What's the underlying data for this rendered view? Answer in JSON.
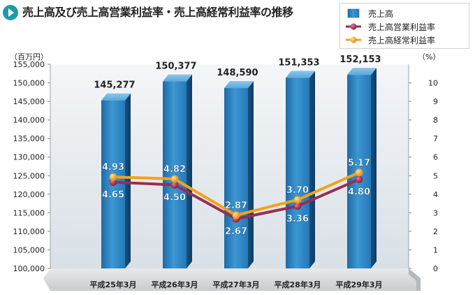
{
  "title": "売上高及び売上高営業利益率・売上高経常利益率の推移",
  "left_unit": "（百万円）",
  "right_unit": "（%）",
  "colors": {
    "bar": "#2f7fb8",
    "operating_line": "#9b2c52",
    "ordinary_line": "#f3a21c"
  },
  "legend": [
    {
      "label": "売上高",
      "icon": "bar-swatch-icon"
    },
    {
      "label": "売上高営業利益率",
      "icon": "maroon-line-marker-icon"
    },
    {
      "label": "売上高経常利益率",
      "icon": "orange-line-marker-icon"
    }
  ],
  "chart_data": {
    "type": "bar",
    "categories": [
      "平成25年3月",
      "平成26年3月",
      "平成27年3月",
      "平成28年3月",
      "平成29年3月"
    ],
    "series": [
      {
        "name": "売上高",
        "type": "bar",
        "axis": "left",
        "values": [
          145277,
          150377,
          148590,
          151353,
          152153
        ],
        "labels": [
          "145,277",
          "150,377",
          "148,590",
          "151,353",
          "152,153"
        ]
      },
      {
        "name": "売上高営業利益率",
        "type": "line",
        "axis": "right",
        "values": [
          4.65,
          4.5,
          2.67,
          3.36,
          4.8
        ],
        "labels": [
          "4.65",
          "4.50",
          "2.67",
          "3.36",
          "4.80"
        ]
      },
      {
        "name": "売上高経常利益率",
        "type": "line",
        "axis": "right",
        "values": [
          4.93,
          4.82,
          2.87,
          3.7,
          5.17
        ],
        "labels": [
          "4.93",
          "4.82",
          "2.87",
          "3.70",
          "5.17"
        ]
      }
    ],
    "left_axis": {
      "ylim": [
        100000,
        155000
      ],
      "ticks": [
        "100,000",
        "105,000",
        "110,000",
        "115,000",
        "120,000",
        "125,000",
        "130,000",
        "135,000",
        "140,000",
        "145,000",
        "150,000",
        "155,000"
      ]
    },
    "right_axis": {
      "ylim": [
        0,
        11
      ],
      "ticks": [
        "0",
        "1",
        "2",
        "3",
        "4",
        "5",
        "6",
        "7",
        "8",
        "9",
        "10"
      ]
    },
    "grid": false,
    "legend_position": "top-right"
  }
}
